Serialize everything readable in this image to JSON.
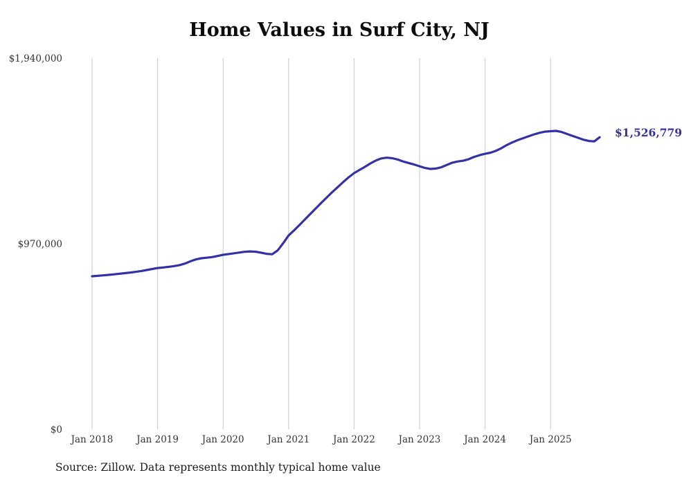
{
  "page": {
    "source_note": "Source: Zillow. Data represents monthly typical home value"
  },
  "chart_data": {
    "type": "line",
    "title": "Home Values in Surf City, NJ",
    "xlabel": "",
    "ylabel": "",
    "ylim": [
      0,
      1940000
    ],
    "grid": "vertical-at-january",
    "legend": "none",
    "line_color": "#3430a6",
    "gridline_color": "#c9c9c9",
    "end_label": "$1,526,779",
    "end_value": 1526779,
    "y_ticks": [
      {
        "value": 0,
        "label": "$0"
      },
      {
        "value": 970000,
        "label": "$970,000"
      },
      {
        "value": 1940000,
        "label": "$1,940,000"
      }
    ],
    "x_ticks": [
      "Jan 2018",
      "Jan 2019",
      "Jan 2020",
      "Jan 2021",
      "Jan 2022",
      "Jan 2023",
      "Jan 2024",
      "Jan 2025"
    ],
    "series": [
      {
        "name": "Monthly typical home value",
        "x": [
          "2018-01",
          "2018-02",
          "2018-03",
          "2018-04",
          "2018-05",
          "2018-06",
          "2018-07",
          "2018-08",
          "2018-09",
          "2018-10",
          "2018-11",
          "2018-12",
          "2019-01",
          "2019-02",
          "2019-03",
          "2019-04",
          "2019-05",
          "2019-06",
          "2019-07",
          "2019-08",
          "2019-09",
          "2019-10",
          "2019-11",
          "2019-12",
          "2020-01",
          "2020-02",
          "2020-03",
          "2020-04",
          "2020-05",
          "2020-06",
          "2020-07",
          "2020-08",
          "2020-09",
          "2020-10",
          "2020-11",
          "2020-12",
          "2021-01",
          "2021-02",
          "2021-03",
          "2021-04",
          "2021-05",
          "2021-06",
          "2021-07",
          "2021-08",
          "2021-09",
          "2021-10",
          "2021-11",
          "2021-12",
          "2022-01",
          "2022-02",
          "2022-03",
          "2022-04",
          "2022-05",
          "2022-06",
          "2022-07",
          "2022-08",
          "2022-09",
          "2022-10",
          "2022-11",
          "2022-12",
          "2023-01",
          "2023-02",
          "2023-03",
          "2023-04",
          "2023-05",
          "2023-06",
          "2023-07",
          "2023-08",
          "2023-09",
          "2023-10",
          "2023-11",
          "2023-12",
          "2024-01",
          "2024-02",
          "2024-03",
          "2024-04",
          "2024-05",
          "2024-06",
          "2024-07",
          "2024-08",
          "2024-09",
          "2024-10",
          "2024-11",
          "2024-12",
          "2025-01",
          "2025-02",
          "2025-03",
          "2025-04",
          "2025-05",
          "2025-06",
          "2025-07",
          "2025-08",
          "2025-09",
          "2025-10"
        ],
        "values": [
          800000,
          802000,
          804500,
          807000,
          810000,
          813000,
          816000,
          819500,
          823000,
          827500,
          832500,
          838000,
          843000,
          846000,
          849000,
          853000,
          858000,
          866000,
          878000,
          888000,
          894000,
          897000,
          900000,
          906000,
          912000,
          916000,
          920000,
          924000,
          928000,
          930000,
          928000,
          923000,
          917000,
          915000,
          935000,
          972000,
          1013000,
          1040000,
          1068000,
          1097000,
          1126000,
          1155000,
          1184000,
          1212000,
          1240000,
          1266000,
          1292000,
          1317000,
          1339000,
          1356000,
          1372000,
          1390000,
          1405000,
          1416000,
          1420000,
          1417000,
          1410000,
          1400000,
          1392000,
          1384000,
          1375000,
          1366000,
          1361000,
          1363000,
          1370000,
          1382000,
          1394000,
          1400000,
          1404000,
          1412000,
          1424000,
          1433000,
          1440000,
          1446000,
          1456000,
          1470000,
          1486000,
          1500000,
          1512000,
          1522000,
          1532000,
          1542000,
          1550000,
          1556000,
          1558000,
          1560000,
          1554000,
          1544000,
          1534000,
          1524000,
          1514000,
          1507000,
          1505000,
          1526779
        ]
      }
    ],
    "source": "Source: Zillow. Data represents monthly typical home value"
  }
}
